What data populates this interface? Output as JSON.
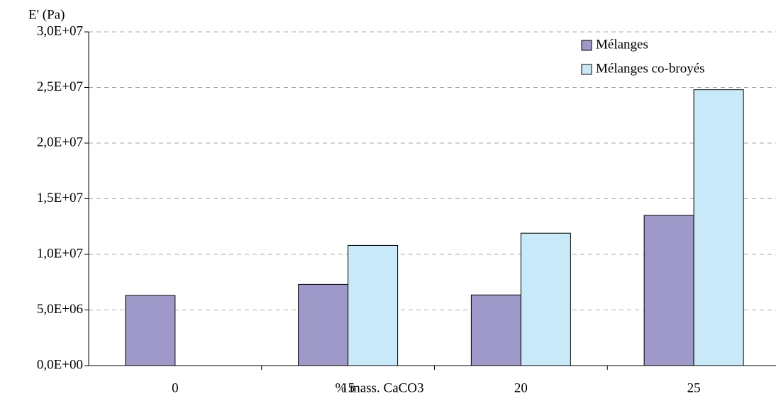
{
  "chart_data": {
    "type": "bar",
    "y_label": "E' (Pa)",
    "x_label": "% mass. CaCO3",
    "categories": [
      "0",
      "15",
      "20",
      "25"
    ],
    "series": [
      {
        "name": "Mélanges",
        "color": "#9e99c9",
        "values": [
          6300000,
          7300000,
          6350000,
          13500000
        ]
      },
      {
        "name": "Mélanges co-broyés",
        "color": "#c8eaf8",
        "values": [
          null,
          10800000,
          11900000,
          24800000
        ]
      }
    ],
    "ylim": [
      0,
      30000000
    ],
    "yticks": [
      {
        "value": 0,
        "label": "0,0E+00"
      },
      {
        "value": 5000000,
        "label": "5,0E+06"
      },
      {
        "value": 10000000,
        "label": "1,0E+07"
      },
      {
        "value": 15000000,
        "label": "1,5E+07"
      },
      {
        "value": 20000000,
        "label": "2,0E+07"
      },
      {
        "value": 25000000,
        "label": "2,5E+07"
      },
      {
        "value": 30000000,
        "label": "3,0E+07"
      }
    ],
    "grid": true,
    "legend": "top-right"
  }
}
